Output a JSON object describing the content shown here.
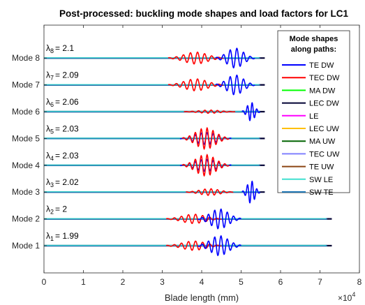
{
  "chart_data": {
    "type": "line",
    "title": "Post-processed: buckling mode shapes and load factors for LC1",
    "xlabel": "Blade length (mm)",
    "x_exponent_label": "×10",
    "x_exponent_power": "4",
    "xlim": [
      0,
      80000
    ],
    "x_ticks": [
      0,
      10000,
      20000,
      30000,
      40000,
      50000,
      60000,
      70000,
      80000
    ],
    "x_tick_labels": [
      "0",
      "1",
      "2",
      "3",
      "4",
      "5",
      "6",
      "7",
      "8"
    ],
    "grid": false,
    "legend_title": [
      "Mode shapes",
      "along paths:"
    ],
    "legend_position": "right",
    "series": [
      {
        "name": "TE DW",
        "color": "#0000FF"
      },
      {
        "name": "TEC DW",
        "color": "#FF0000"
      },
      {
        "name": "MA DW",
        "color": "#00FF00"
      },
      {
        "name": "LEC DW",
        "color": "#000033"
      },
      {
        "name": "LE",
        "color": "#FF00FF"
      },
      {
        "name": "LEC UW",
        "color": "#FFC000"
      },
      {
        "name": "MA UW",
        "color": "#006400"
      },
      {
        "name": "TEC UW",
        "color": "#8080FF"
      },
      {
        "name": "TE UW",
        "color": "#8B4513"
      },
      {
        "name": "SW LE",
        "color": "#40E0D0"
      },
      {
        "name": "SW TE",
        "color": "#1F77B4"
      }
    ],
    "modes": [
      {
        "label": "Mode 1",
        "lambda_sub": "1",
        "lambda_value": "= 1.99",
        "line_end": 73000,
        "packets": [
          {
            "color": "#FF0000",
            "center": 38000,
            "halfwidth": 7000,
            "amp": 0.35,
            "period": 1800
          },
          {
            "color": "#0000FF",
            "center": 44500,
            "halfwidth": 5500,
            "amp": 0.75,
            "period": 1600
          }
        ]
      },
      {
        "label": "Mode 2",
        "lambda_sub": "2",
        "lambda_value": "= 2",
        "line_end": 73000,
        "packets": [
          {
            "color": "#FF0000",
            "center": 38000,
            "halfwidth": 7000,
            "amp": 0.35,
            "period": 1800
          },
          {
            "color": "#0000FF",
            "center": 44500,
            "halfwidth": 5500,
            "amp": 0.75,
            "period": 1600
          }
        ]
      },
      {
        "label": "Mode 3",
        "lambda_sub": "3",
        "lambda_value": "= 2.02",
        "line_end": 56000,
        "packets": [
          {
            "color": "#FF0000",
            "center": 42000,
            "halfwidth": 6000,
            "amp": 0.25,
            "period": 1600
          },
          {
            "color": "#0000FF",
            "center": 52500,
            "halfwidth": 2300,
            "amp": 0.85,
            "period": 1200
          }
        ]
      },
      {
        "label": "Mode 4",
        "lambda_sub": "4",
        "lambda_value": "= 2.03",
        "line_end": 56000,
        "packets": [
          {
            "color": "#0000FF",
            "center": 41000,
            "halfwidth": 6500,
            "amp": 0.45,
            "period": 1500
          },
          {
            "color": "#FF0000",
            "center": 41000,
            "halfwidth": 6000,
            "amp": 0.8,
            "period": 1500
          }
        ]
      },
      {
        "label": "Mode 5",
        "lambda_sub": "5",
        "lambda_value": "= 2.03",
        "line_end": 56000,
        "packets": [
          {
            "color": "#0000FF",
            "center": 41000,
            "halfwidth": 6500,
            "amp": 0.45,
            "period": 1500
          },
          {
            "color": "#FF0000",
            "center": 41000,
            "halfwidth": 6000,
            "amp": 0.8,
            "period": 1500
          }
        ]
      },
      {
        "label": "Mode 6",
        "lambda_sub": "6",
        "lambda_value": "= 2.06",
        "line_end": 56000,
        "packets": [
          {
            "color": "#FF0000",
            "center": 42000,
            "halfwidth": 6500,
            "amp": 0.12,
            "period": 1600
          },
          {
            "color": "#0000FF",
            "center": 52500,
            "halfwidth": 2300,
            "amp": 0.7,
            "period": 1200
          }
        ]
      },
      {
        "label": "Mode 7",
        "lambda_sub": "7",
        "lambda_value": "= 2.09",
        "line_end": 56000,
        "packets": [
          {
            "color": "#FF0000",
            "center": 38500,
            "halfwidth": 7000,
            "amp": 0.45,
            "period": 1800
          },
          {
            "color": "#0000FF",
            "center": 48500,
            "halfwidth": 5000,
            "amp": 0.75,
            "period": 1700
          }
        ]
      },
      {
        "label": "Mode 8",
        "lambda_sub": "8",
        "lambda_value": "= 2.1",
        "line_end": 56000,
        "packets": [
          {
            "color": "#FF0000",
            "center": 38500,
            "halfwidth": 7000,
            "amp": 0.45,
            "period": 1800
          },
          {
            "color": "#0000FF",
            "center": 48500,
            "halfwidth": 5000,
            "amp": 0.75,
            "period": 1700
          }
        ]
      }
    ]
  }
}
